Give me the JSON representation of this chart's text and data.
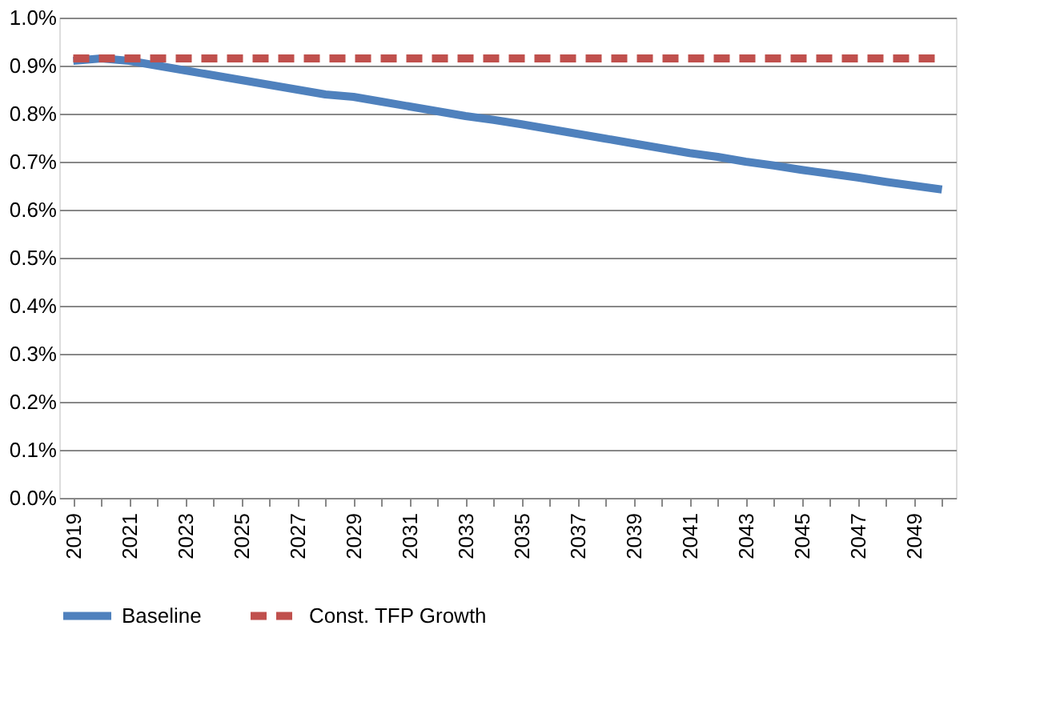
{
  "chart_data": {
    "type": "line",
    "categories": [
      "2019",
      null,
      "2021",
      null,
      "2023",
      null,
      "2025",
      null,
      "2027",
      null,
      "2029",
      null,
      "2031",
      null,
      "2033",
      null,
      "2035",
      null,
      "2037",
      null,
      "2039",
      null,
      "2041",
      null,
      "2043",
      null,
      "2045",
      null,
      "2047",
      null,
      "2049",
      null
    ],
    "series": [
      {
        "name": "Baseline",
        "color": "#4f81bd",
        "line_style": "solid",
        "values": [
          0.91,
          0.915,
          0.91,
          0.9,
          0.89,
          0.88,
          0.87,
          0.86,
          0.85,
          0.84,
          0.835,
          0.825,
          0.815,
          0.805,
          0.795,
          0.787,
          0.778,
          0.768,
          0.758,
          0.748,
          0.738,
          0.728,
          0.718,
          0.71,
          0.7,
          0.692,
          0.683,
          0.675,
          0.667,
          0.658,
          0.65,
          0.642
        ]
      },
      {
        "name": "Const. TFP Growth",
        "color": "#c0504d",
        "line_style": "dashed",
        "values": [
          0.915,
          0.915,
          0.915,
          0.915,
          0.915,
          0.915,
          0.915,
          0.915,
          0.915,
          0.915,
          0.915,
          0.915,
          0.915,
          0.915,
          0.915,
          0.915,
          0.915,
          0.915,
          0.915,
          0.915,
          0.915,
          0.915,
          0.915,
          0.915,
          0.915,
          0.915,
          0.915,
          0.915,
          0.915,
          0.915,
          0.915,
          0.915
        ]
      }
    ],
    "ylim": [
      0,
      1.0
    ],
    "yticks": [
      {
        "value": 0,
        "label": "0.0%"
      },
      {
        "value": 0.1,
        "label": "0.1%"
      },
      {
        "value": 0.2,
        "label": "0.2%"
      },
      {
        "value": 0.3,
        "label": "0.3%"
      },
      {
        "value": 0.4,
        "label": "0.4%"
      },
      {
        "value": 0.5,
        "label": "0.5%"
      },
      {
        "value": 0.6,
        "label": "0.6%"
      },
      {
        "value": 0.7,
        "label": "0.7%"
      },
      {
        "value": 0.8,
        "label": "0.8%"
      },
      {
        "value": 0.9,
        "label": "0.9%"
      },
      {
        "value": 1.0,
        "label": "1.0%"
      }
    ],
    "grid": "y",
    "legend": "bottom",
    "marker": "none"
  }
}
